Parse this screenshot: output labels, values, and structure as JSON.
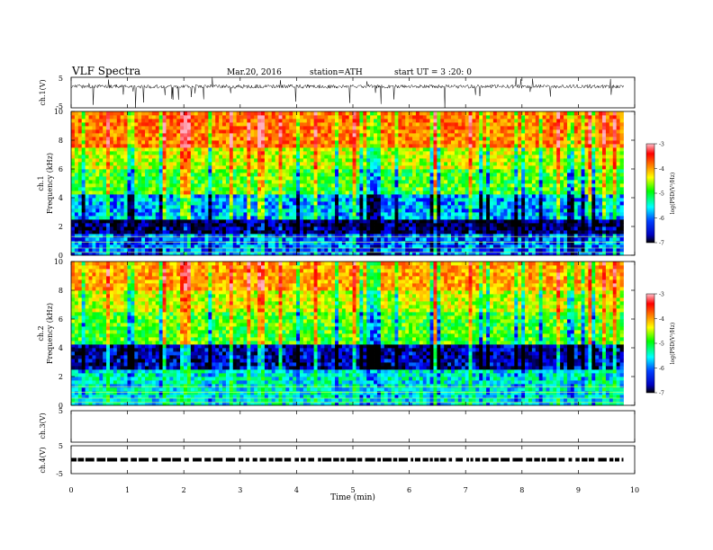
{
  "header": {
    "title": "VLF  Spectra",
    "date": "Mar.20, 2016",
    "station": "station=ATH",
    "start": "start  UT =   3  :20: 0"
  },
  "colors": {
    "background": "#ffffff",
    "trace": "#000000",
    "colormap": [
      "#000000",
      "#0000ff",
      "#00ffff",
      "#00ff00",
      "#ffff00",
      "#ff8000",
      "#ff0000",
      "#ffb0c0"
    ]
  },
  "chart_data": [
    {
      "type": "line",
      "ylabel": "ch.1(V)",
      "ylim": [
        -5,
        5
      ],
      "yticks": [
        5,
        -5
      ],
      "description_level": "noisy waveform near +2 V with downward spikes",
      "mean_level": 2
    },
    {
      "type": "heatmap",
      "ylabel_line1": "ch.1",
      "ylabel_line2": "Frequency  (kHz)",
      "ylim": [
        0,
        10
      ],
      "yticks": [
        0,
        2,
        4,
        6,
        8,
        10
      ],
      "colorbar": {
        "label": "log(PSD(V²/Hz)",
        "range": [
          -7,
          -3
        ],
        "ticks": [
          -3,
          -4,
          -5,
          -6,
          -7
        ]
      },
      "bands_khz": [
        {
          "range": [
            0,
            1.6
          ],
          "log_psd": -6.2
        },
        {
          "range": [
            1.6,
            2.6
          ],
          "log_psd": -6.8
        },
        {
          "range": [
            2.6,
            4.2
          ],
          "log_psd": -6.0
        },
        {
          "range": [
            4.2,
            6.0
          ],
          "log_psd": -5.2
        },
        {
          "range": [
            6.0,
            7.6
          ],
          "log_psd": -4.8
        },
        {
          "range": [
            7.6,
            10
          ],
          "log_psd": -4.1
        }
      ]
    },
    {
      "type": "heatmap",
      "ylabel_line1": "ch.2",
      "ylabel_line2": "Frequency  (kHz)",
      "ylim": [
        0,
        10
      ],
      "yticks": [
        0,
        2,
        4,
        6,
        8,
        10
      ],
      "colorbar": {
        "label": "log(PSD(V²/Hz)",
        "range": [
          -7,
          -3
        ],
        "ticks": [
          -3,
          -4,
          -5,
          -6,
          -7
        ]
      },
      "bands_khz": [
        {
          "range": [
            0,
            2.4
          ],
          "log_psd": -5.8
        },
        {
          "range": [
            2.4,
            4.2
          ],
          "log_psd": -6.6
        },
        {
          "range": [
            4.2,
            6.5
          ],
          "log_psd": -5.2
        },
        {
          "range": [
            6.5,
            8.0
          ],
          "log_psd": -4.8
        },
        {
          "range": [
            8.0,
            10
          ],
          "log_psd": -4.3
        }
      ]
    },
    {
      "type": "line",
      "ylabel": "ch.3(V)",
      "ylim": [
        -5,
        5
      ],
      "yticks": [
        5,
        -5
      ],
      "values": []
    },
    {
      "type": "line",
      "ylabel": "ch.4(V)",
      "ylim": [
        -5,
        5
      ],
      "yticks": [
        5,
        -5
      ],
      "description_level": "pulse train near 0 V",
      "mean_level": 0
    }
  ],
  "xaxis": {
    "label": "Time  (min)",
    "range": [
      0,
      10
    ],
    "ticks": [
      0,
      1,
      2,
      3,
      4,
      5,
      6,
      7,
      8,
      9,
      10
    ],
    "data_end_min": 9.8
  }
}
